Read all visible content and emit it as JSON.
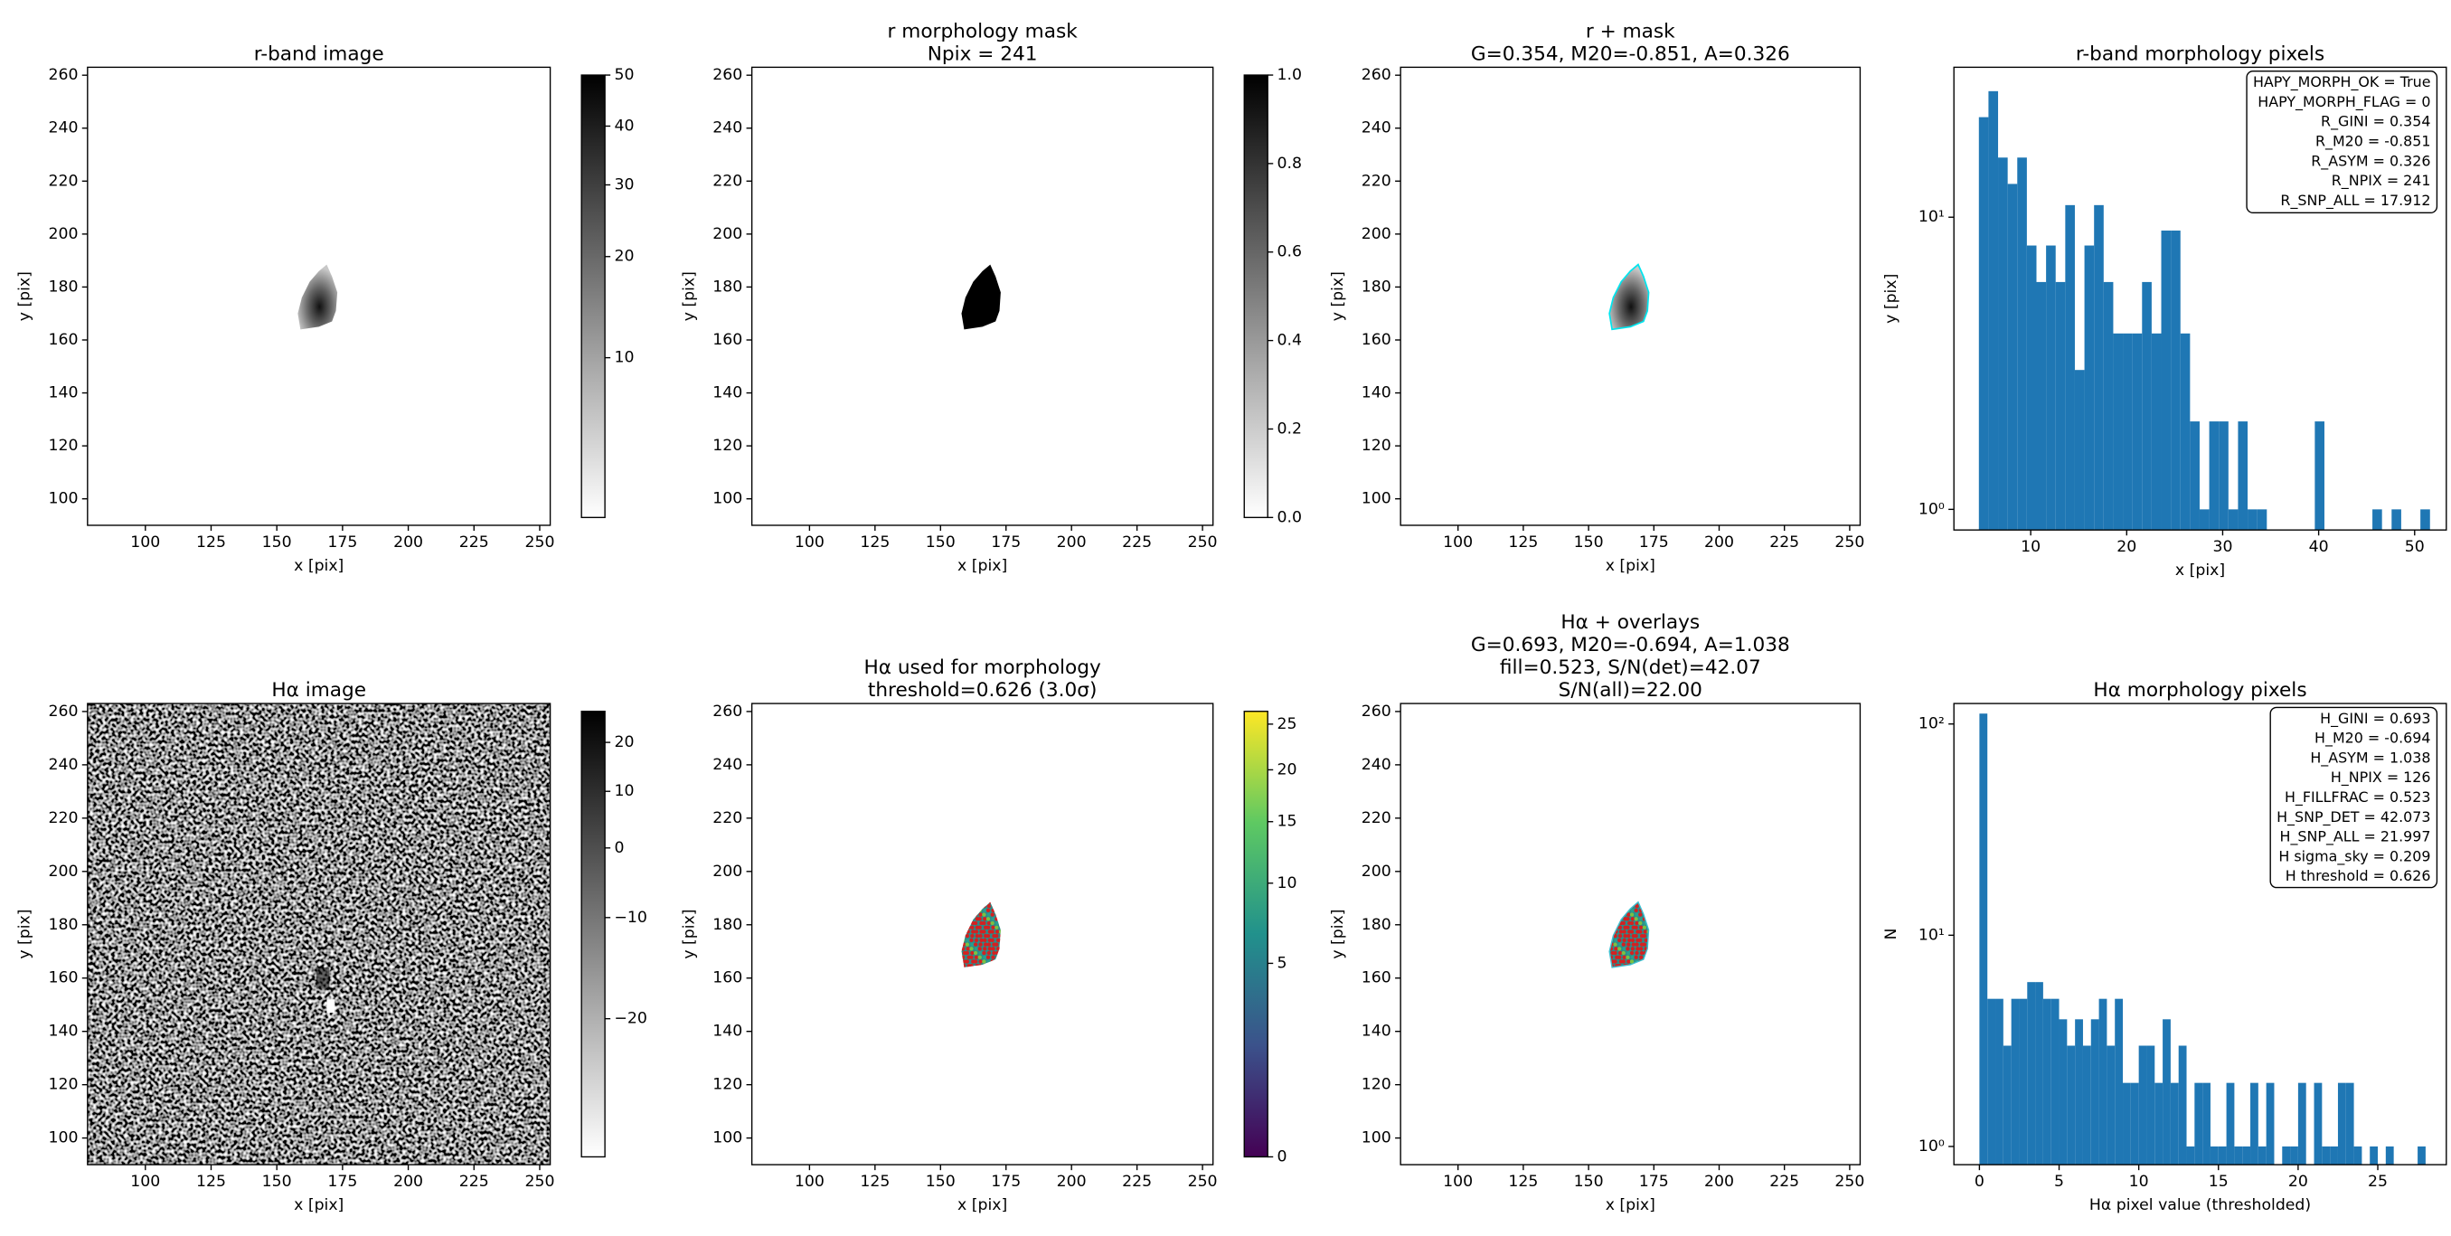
{
  "chart_data": [
    {
      "type": "image",
      "title": [
        "r-band image"
      ],
      "xlabel": "x [pix]",
      "ylabel": "y [pix]",
      "xlim": [
        78,
        254
      ],
      "ylim": [
        90,
        263
      ],
      "xticks": [
        100,
        125,
        150,
        175,
        200,
        225,
        250
      ],
      "yticks": [
        100,
        120,
        140,
        160,
        180,
        200,
        220,
        240,
        260
      ],
      "cmap": "gray_r",
      "colorbar": {
        "cmap": "gray_r",
        "stretch": "sqrt",
        "clim": [
          4,
          50
        ],
        "ticks": [
          10,
          20,
          30,
          40,
          50
        ]
      }
    },
    {
      "type": "image",
      "title": [
        "r morphology mask",
        "Npix = 241"
      ],
      "xlabel": "x [pix]",
      "ylabel": "y [pix]",
      "xlim": [
        78,
        254
      ],
      "ylim": [
        90,
        263
      ],
      "xticks": [
        100,
        125,
        150,
        175,
        200,
        225,
        250
      ],
      "yticks": [
        100,
        120,
        140,
        160,
        180,
        200,
        220,
        240,
        260
      ],
      "cmap": "gray_r",
      "colorbar": {
        "cmap": "gray_r",
        "stretch": "linear",
        "clim": [
          0,
          1
        ],
        "ticks": [
          {
            "value": 0,
            "label": "0.0"
          },
          0.2,
          0.4,
          0.6,
          0.8,
          {
            "value": 1,
            "label": "1.0"
          }
        ]
      }
    },
    {
      "type": "image",
      "title": [
        "r + mask",
        "G=0.354, M20=-0.851, A=0.326"
      ],
      "xlabel": "x [pix]",
      "ylabel": "y [pix]",
      "xlim": [
        78,
        254
      ],
      "ylim": [
        90,
        263
      ],
      "xticks": [
        100,
        125,
        150,
        175,
        200,
        225,
        250
      ],
      "yticks": [
        100,
        120,
        140,
        160,
        180,
        200,
        220,
        240,
        260
      ],
      "cmap": "gray_r"
    },
    {
      "type": "histogram",
      "title": [
        "r-band morphology pixels"
      ],
      "xlabel": "x [pix]",
      "ylabel": "y [pix]",
      "color": "#1f77b4",
      "log_y": true,
      "xlim": [
        2.0,
        53.3
      ],
      "ylim": [
        0.85,
        32.6
      ],
      "xticks": [
        10,
        20,
        30,
        40,
        50
      ],
      "yticks": [
        {
          "value": 1,
          "label": "10⁰"
        },
        {
          "value": 10,
          "label": "10¹"
        }
      ],
      "bins": [
        4.6,
        5.6,
        6.6,
        7.6,
        8.6,
        9.6,
        10.6,
        11.6,
        12.6,
        13.6,
        14.6,
        15.6,
        16.6,
        17.6,
        18.6,
        19.6,
        20.6,
        21.6,
        22.6,
        23.6,
        24.6,
        25.6,
        26.6,
        27.6,
        28.6,
        29.6,
        30.6,
        31.6,
        32.6,
        33.6,
        34.6,
        35.6,
        36.6,
        37.6,
        38.6,
        39.6,
        40.6,
        41.6,
        42.6,
        43.6,
        44.6,
        45.6,
        46.6,
        47.6,
        48.6,
        49.6,
        50.6,
        51.6,
        52.6
      ],
      "values": [
        22,
        27,
        16,
        13,
        16,
        8,
        6,
        8,
        6,
        11,
        3,
        8,
        11,
        6,
        4,
        4,
        4,
        6,
        4,
        9,
        9,
        4,
        2,
        1,
        2,
        2,
        1,
        2,
        1,
        1,
        0,
        0,
        0,
        0,
        0,
        2,
        0,
        0,
        0,
        0,
        0,
        1,
        0,
        1,
        0,
        0,
        1,
        0
      ],
      "annotation": [
        "HAPY_MORPH_OK = True",
        "HAPY_MORPH_FLAG = 0",
        "R_GINI = 0.354",
        "R_M20 = -0.851",
        "R_ASYM = 0.326",
        "R_NPIX = 241",
        "R_SNP_ALL = 17.912"
      ]
    },
    {
      "type": "image",
      "title": [
        "Hα image"
      ],
      "xlabel": "x [pix]",
      "ylabel": "y [pix]",
      "xlim": [
        78,
        254
      ],
      "ylim": [
        90,
        263
      ],
      "xticks": [
        100,
        125,
        150,
        175,
        200,
        225,
        250
      ],
      "yticks": [
        100,
        120,
        140,
        160,
        180,
        200,
        220,
        240,
        260
      ],
      "cmap": "gray_r",
      "colorbar": {
        "cmap": "gray_r",
        "stretch": "sqrt",
        "clim": [
          -25,
          27
        ],
        "ticks": [
          {
            "value": -20,
            "label": "−20"
          },
          {
            "value": -10,
            "label": "−10"
          },
          0,
          10,
          20
        ]
      }
    },
    {
      "type": "image",
      "title": [
        "Hα used for morphology",
        "threshold=0.626 (3.0σ)"
      ],
      "xlabel": "x [pix]",
      "ylabel": "y [pix]",
      "xlim": [
        78,
        254
      ],
      "ylim": [
        90,
        263
      ],
      "xticks": [
        100,
        125,
        150,
        175,
        200,
        225,
        250
      ],
      "yticks": [
        100,
        120,
        140,
        160,
        180,
        200,
        220,
        240,
        260
      ],
      "cmap": "viridis",
      "colorbar": {
        "cmap": "viridis",
        "stretch": "sqrt",
        "clim": [
          0,
          26.5
        ],
        "ticks": [
          0,
          5,
          10,
          15,
          20,
          25
        ]
      }
    },
    {
      "type": "image",
      "title": [
        "Hα + overlays",
        "G=0.693, M20=-0.694, A=1.038",
        "fill=0.523, S/N(det)=42.07",
        "S/N(all)=22.00"
      ],
      "xlabel": "x [pix]",
      "ylabel": "y [pix]",
      "xlim": [
        78,
        254
      ],
      "ylim": [
        90,
        263
      ],
      "xticks": [
        100,
        125,
        150,
        175,
        200,
        225,
        250
      ],
      "yticks": [
        100,
        120,
        140,
        160,
        180,
        200,
        220,
        240,
        260
      ],
      "cmap": "viridis"
    },
    {
      "type": "histogram",
      "title": [
        "Hα morphology pixels"
      ],
      "xlabel": "Hα pixel value (thresholded)",
      "ylabel": "N",
      "color": "#1f77b4",
      "log_y": true,
      "xlim": [
        -1.6,
        29.3
      ],
      "ylim": [
        0.82,
        125
      ],
      "xticks": [
        0,
        5,
        10,
        15,
        20,
        25
      ],
      "yticks": [
        {
          "value": 1,
          "label": "10⁰"
        },
        {
          "value": 10,
          "label": "10¹"
        },
        {
          "value": 100,
          "label": "10²"
        }
      ],
      "bins": [
        0,
        0.5,
        1,
        1.5,
        2,
        2.5,
        3,
        3.5,
        4,
        4.5,
        5,
        5.5,
        6,
        6.5,
        7,
        7.5,
        8,
        8.5,
        9,
        9.5,
        10,
        10.5,
        11,
        11.5,
        12,
        12.5,
        13,
        13.5,
        14,
        14.5,
        15,
        15.5,
        16,
        16.5,
        17,
        17.5,
        18,
        18.5,
        19,
        19.5,
        20,
        20.5,
        21,
        21.5,
        22,
        22.5,
        23,
        23.5,
        24,
        24.5,
        25,
        25.5,
        26,
        26.5,
        27,
        27.5,
        28
      ],
      "values": [
        112,
        5,
        5,
        3,
        5,
        5,
        6,
        6,
        5,
        5,
        4,
        3,
        4,
        3,
        4,
        5,
        3,
        5,
        2,
        2,
        3,
        3,
        2,
        4,
        2,
        3,
        1,
        2,
        2,
        1,
        1,
        2,
        1,
        1,
        2,
        1,
        2,
        0,
        1,
        1,
        2,
        0,
        2,
        1,
        1,
        2,
        2,
        1,
        0,
        1,
        0,
        1,
        0,
        0,
        0,
        1
      ],
      "annotation": [
        "H_GINI = 0.693",
        "H_M20 = -0.694",
        "H_ASYM = 1.038",
        "H_NPIX = 126",
        "H_FILLFRAC = 0.523",
        "H_SNP_DET = 42.073",
        "H_SNP_ALL = 21.997",
        "H sigma_sky = 0.209",
        "H threshold = 0.626"
      ]
    }
  ]
}
